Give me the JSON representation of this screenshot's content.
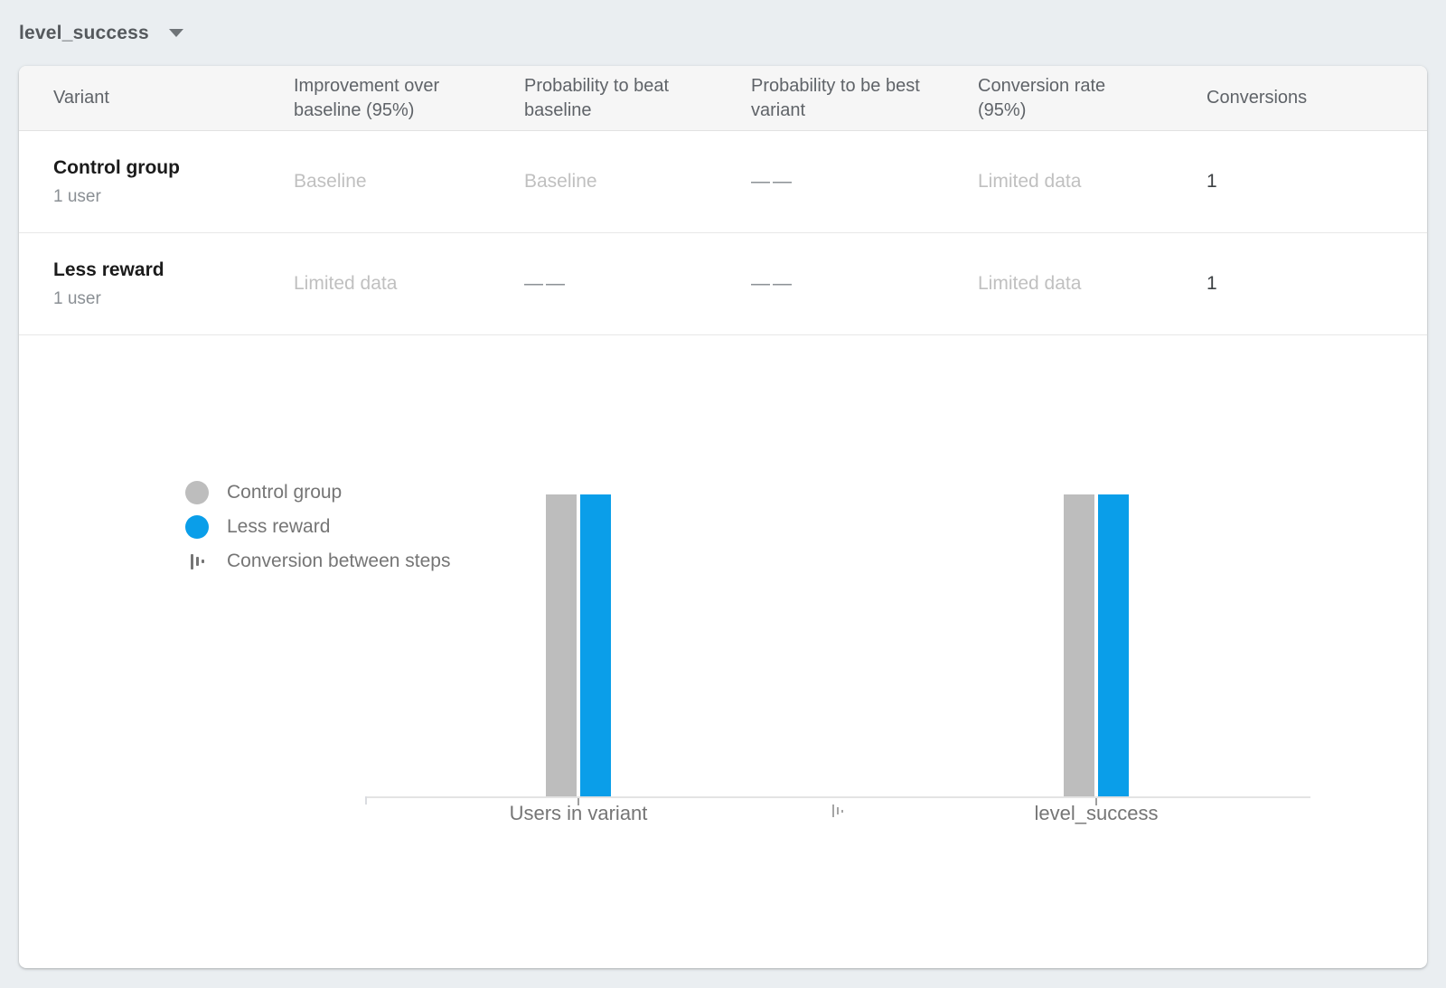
{
  "header": {
    "metric_selector": {
      "value": "level_success"
    }
  },
  "table": {
    "columns": [
      "Variant",
      "Improvement over baseline (95%)",
      "Probability to beat baseline",
      "Probability to be best variant",
      "Conversion rate (95%)",
      "Conversions"
    ],
    "rows": [
      {
        "variant": "Control group",
        "subtitle": "1 user",
        "improvement": "Baseline",
        "prob_beat_baseline": "Baseline",
        "prob_best_variant": "——",
        "conversion_rate": "Limited data",
        "conversions": "1"
      },
      {
        "variant": "Less reward",
        "subtitle": "1 user",
        "improvement": "Limited data",
        "prob_beat_baseline": "——",
        "prob_best_variant": "——",
        "conversion_rate": "Limited data",
        "conversions": "1"
      }
    ]
  },
  "chart_data": {
    "type": "bar",
    "categories": [
      "Users in variant",
      "level_success"
    ],
    "series": [
      {
        "name": "Control group",
        "color": "#bdbdbd",
        "values": [
          1,
          1
        ]
      },
      {
        "name": "Less reward",
        "color": "#0a9ee9",
        "values": [
          1,
          1
        ]
      }
    ],
    "ylim": [
      0,
      1
    ],
    "grid": false,
    "legend_position": "left",
    "legend_items": [
      "Control group",
      "Less reward",
      "Conversion between steps"
    ]
  },
  "colors": {
    "accent_blue": "#0a9ee9",
    "bar_gray": "#bdbdbd",
    "page_background": "#eaeef1"
  }
}
